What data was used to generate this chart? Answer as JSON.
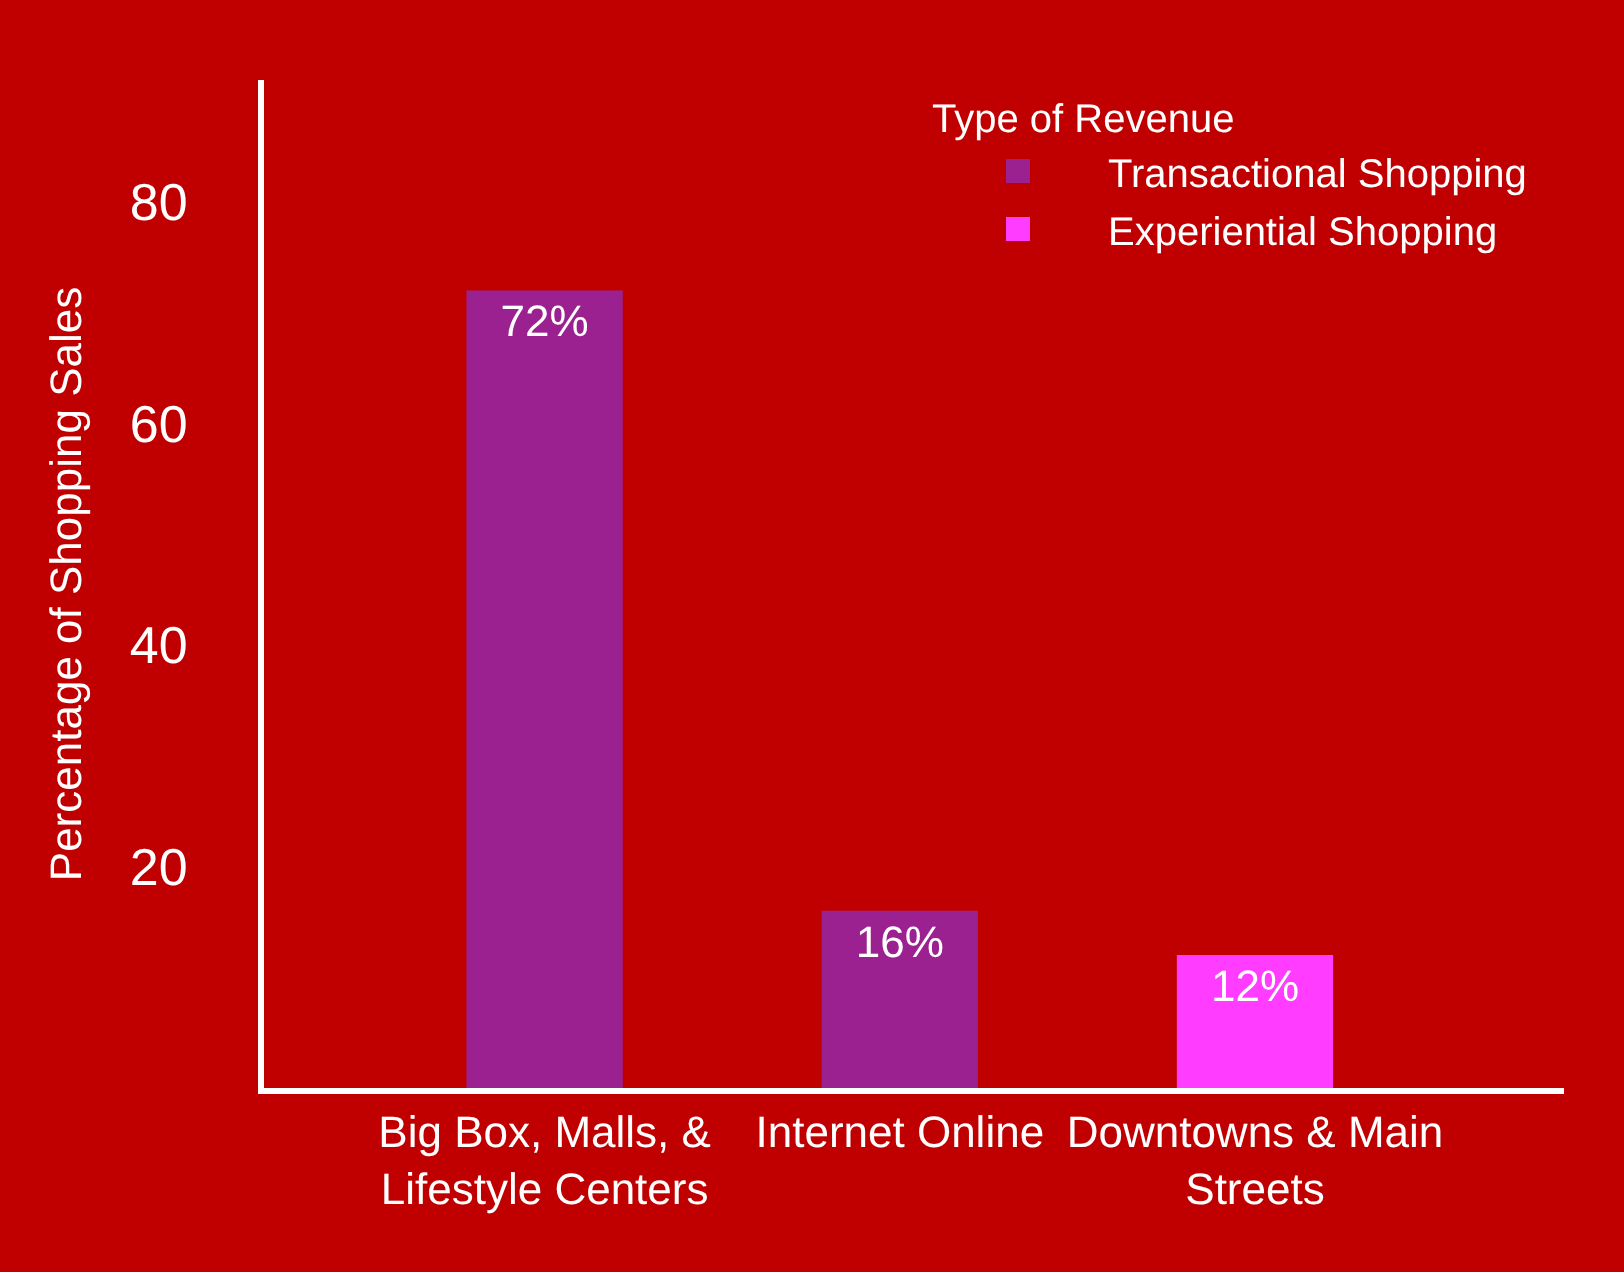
{
  "chart_data": {
    "type": "bar",
    "ylabel": "Percentage of Shopping Sales",
    "legend_title": "Type of Revenue",
    "categories": [
      "Big Box, Malls, & Lifestyle Centers",
      "Internet Online",
      "Downtowns & Main Streets"
    ],
    "series": [
      {
        "name": "Transactional Shopping",
        "color": "#9b2090",
        "values": [
          72,
          16,
          null
        ],
        "value_labels": [
          "72%",
          "16%",
          null
        ]
      },
      {
        "name": "Experiential Shopping",
        "color": "#ff3cff",
        "values": [
          null,
          null,
          12
        ],
        "value_labels": [
          null,
          null,
          "12%"
        ]
      }
    ],
    "stacked": true,
    "ylim": [
      0,
      91
    ],
    "yticks": [
      20,
      40,
      60,
      80
    ],
    "grid": false,
    "legend": "top right"
  }
}
